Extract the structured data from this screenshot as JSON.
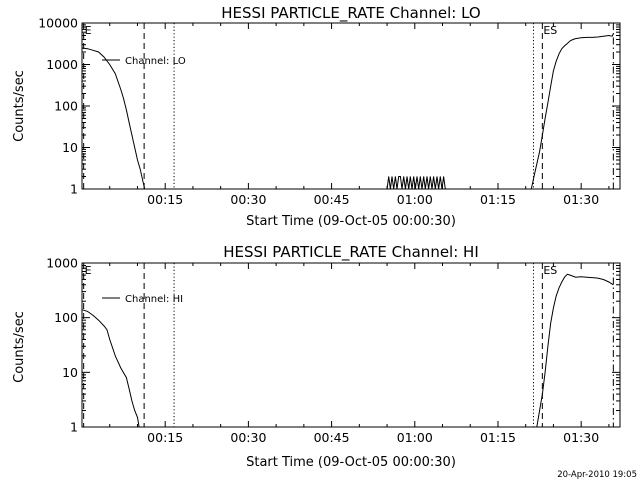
{
  "footer": {
    "timestamp": "20-Apr-2010 19:05"
  },
  "chart_data": [
    {
      "type": "line",
      "title": "HESSI PARTICLE_RATE Channel: LO",
      "xlabel": "Start Time (09-Oct-05 00:00:30)",
      "ylabel": "Counts/sec",
      "yscale": "log",
      "xlim": [
        0,
        97
      ],
      "ylim": [
        1,
        10000
      ],
      "x_ticks": [
        15,
        30,
        45,
        60,
        75,
        90
      ],
      "x_tick_labels": [
        "00:15",
        "00:30",
        "00:45",
        "01:00",
        "01:15",
        "01:30"
      ],
      "y_ticks": [
        1,
        10,
        100,
        1000,
        10000
      ],
      "y_tick_labels": [
        "1",
        "10",
        "100",
        "1000",
        "10000"
      ],
      "legend": {
        "position": "top-left",
        "entries": [
          "Channel: LO"
        ]
      },
      "markers": [
        {
          "label": "E",
          "x": 0.3,
          "style": "dashed",
          "labeled": true
        },
        {
          "label": "",
          "x": 11.2,
          "style": "dashed",
          "labeled": false
        },
        {
          "label": "",
          "x": 16.6,
          "style": "dotted",
          "labeled": false
        },
        {
          "label": "",
          "x": 81.4,
          "style": "dotted",
          "labeled": false
        },
        {
          "label": "ES",
          "x": 83.0,
          "style": "dashed",
          "labeled": true
        },
        {
          "label": "",
          "x": 95.8,
          "style": "dashdot",
          "labeled": false
        }
      ],
      "series": [
        {
          "name": "Channel: LO",
          "segments": [
            {
              "x": [
                0,
                1,
                2,
                3,
                4,
                5,
                6,
                7,
                7.5,
                8,
                8.5,
                9,
                9.5,
                10,
                10.5,
                11,
                11.3
              ],
              "y": [
                2500,
                2400,
                2200,
                2000,
                1500,
                1000,
                600,
                250,
                150,
                80,
                40,
                20,
                10,
                5,
                3,
                1.5,
                1
              ]
            },
            {
              "x": [
                55.0,
                55.3,
                55.6,
                55.9,
                56.2,
                56.5,
                56.8,
                57.1,
                57.4,
                57.7,
                58.0,
                58.3,
                58.6,
                58.9,
                59.2,
                59.5,
                59.8,
                60.1,
                60.4,
                60.7,
                61.0,
                61.3,
                61.6,
                61.9,
                62.2,
                62.5,
                62.8,
                63.1,
                63.4,
                63.7,
                64.0,
                64.3,
                64.6,
                64.9,
                65.2,
                65.5,
                65.8
              ],
              "y": [
                1,
                2,
                1,
                2,
                1,
                2,
                1,
                2,
                2,
                1,
                2,
                1,
                2,
                1,
                2,
                1,
                2,
                1,
                2,
                1,
                2,
                1,
                2,
                1,
                2,
                1,
                2,
                1,
                2,
                1,
                2,
                1,
                2,
                1,
                2,
                1,
                1
              ]
            },
            {
              "x": [
                81.0,
                81.5,
                82.0,
                82.5,
                83.0,
                83.5,
                84.0,
                84.5,
                85.0,
                85.5,
                86.0,
                86.5,
                87.0,
                87.5,
                88.0,
                88.5,
                89.0,
                90.0,
                91.0,
                92.0,
                93.0,
                94.0,
                95.0,
                95.6,
                95.8
              ],
              "y": [
                1,
                2,
                4,
                8,
                20,
                50,
                120,
                300,
                700,
                1200,
                1800,
                2400,
                2800,
                3200,
                3700,
                4000,
                4200,
                4400,
                4500,
                4500,
                4600,
                4800,
                5000,
                4800,
                5500
              ]
            }
          ]
        }
      ]
    },
    {
      "type": "line",
      "title": "HESSI PARTICLE_RATE Channel: HI",
      "xlabel": "Start Time (09-Oct-05 00:00:30)",
      "ylabel": "Counts/sec",
      "yscale": "log",
      "xlim": [
        0,
        97
      ],
      "ylim": [
        1,
        1000
      ],
      "x_ticks": [
        15,
        30,
        45,
        60,
        75,
        90
      ],
      "x_tick_labels": [
        "00:15",
        "00:30",
        "00:45",
        "01:00",
        "01:15",
        "01:30"
      ],
      "y_ticks": [
        1,
        10,
        100,
        1000
      ],
      "y_tick_labels": [
        "1",
        "10",
        "100",
        "1000"
      ],
      "legend": {
        "position": "top-left",
        "entries": [
          "Channel: HI"
        ]
      },
      "markers": [
        {
          "label": "E",
          "x": 0.3,
          "style": "dashed",
          "labeled": true
        },
        {
          "label": "",
          "x": 11.2,
          "style": "dashed",
          "labeled": false
        },
        {
          "label": "",
          "x": 16.6,
          "style": "dotted",
          "labeled": false
        },
        {
          "label": "",
          "x": 81.4,
          "style": "dotted",
          "labeled": false
        },
        {
          "label": "ES",
          "x": 83.0,
          "style": "dashed",
          "labeled": true
        },
        {
          "label": "",
          "x": 95.8,
          "style": "dashdot",
          "labeled": false
        }
      ],
      "series": [
        {
          "name": "Channel: HI",
          "segments": [
            {
              "x": [
                0,
                1,
                2,
                3,
                4,
                4.5,
                5,
                6,
                7,
                8,
                8.5,
                9,
                9.5,
                10,
                10.3
              ],
              "y": [
                140,
                130,
                110,
                90,
                70,
                60,
                40,
                20,
                12,
                8,
                5,
                3,
                2,
                1.5,
                1
              ]
            },
            {
              "x": [
                82.0,
                82.5,
                83.0,
                83.5,
                84.0,
                84.5,
                85.0,
                85.5,
                86.0,
                86.5,
                87.0,
                87.5,
                88.0,
                89.0,
                90.0,
                91.0,
                92.0,
                93.0,
                94.0,
                95.0,
                95.8
              ],
              "y": [
                1,
                2,
                4,
                10,
                30,
                80,
                150,
                250,
                350,
                450,
                550,
                620,
                600,
                550,
                560,
                550,
                540,
                530,
                500,
                450,
                400
              ]
            }
          ]
        }
      ]
    }
  ]
}
